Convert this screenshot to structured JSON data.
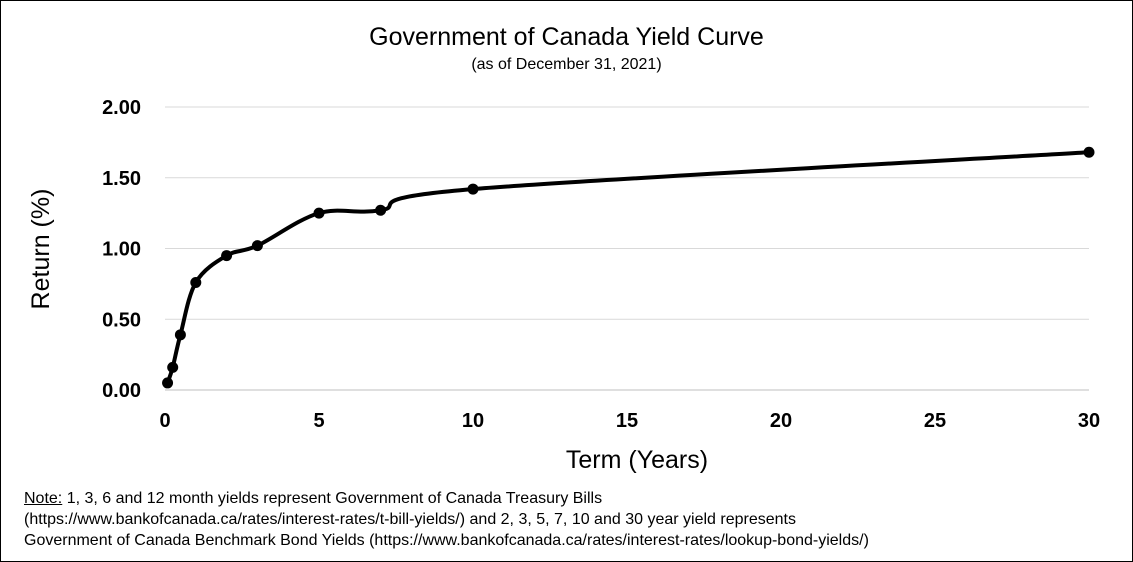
{
  "chart_data": {
    "type": "line",
    "title": "Government of Canada Yield Curve",
    "subtitle": "(as of December 31, 2021)",
    "xlabel": "Term (Years)",
    "ylabel": "Return (%)",
    "xlim": [
      0,
      30
    ],
    "ylim": [
      0,
      2
    ],
    "x_ticks": [
      "0",
      "5",
      "10",
      "15",
      "20",
      "25",
      "30"
    ],
    "y_ticks": [
      "0.00",
      "0.50",
      "1.00",
      "1.50",
      "2.00"
    ],
    "grid": "horizontal",
    "line_color": "#000000",
    "grid_color": "#d9d9d9",
    "smooth": true,
    "series": [
      {
        "x": [
          0.083,
          0.25,
          0.5,
          1,
          2,
          3,
          5,
          7,
          10,
          30
        ],
        "y": [
          0.05,
          0.16,
          0.39,
          0.76,
          0.95,
          1.02,
          1.25,
          1.27,
          1.42,
          1.68
        ]
      }
    ]
  },
  "note": {
    "label": "Note:",
    "line1": " 1, 3, 6 and 12 month yields represent Government of Canada Treasury Bills",
    "line2": "(https://www.bankofcanada.ca/rates/interest-rates/t-bill-yields/) and 2, 3, 5, 7, 10 and 30 year yield represents",
    "line3": "Government of Canada Benchmark Bond Yields (https://www.bankofcanada.ca/rates/interest-rates/lookup-bond-yields/)"
  }
}
